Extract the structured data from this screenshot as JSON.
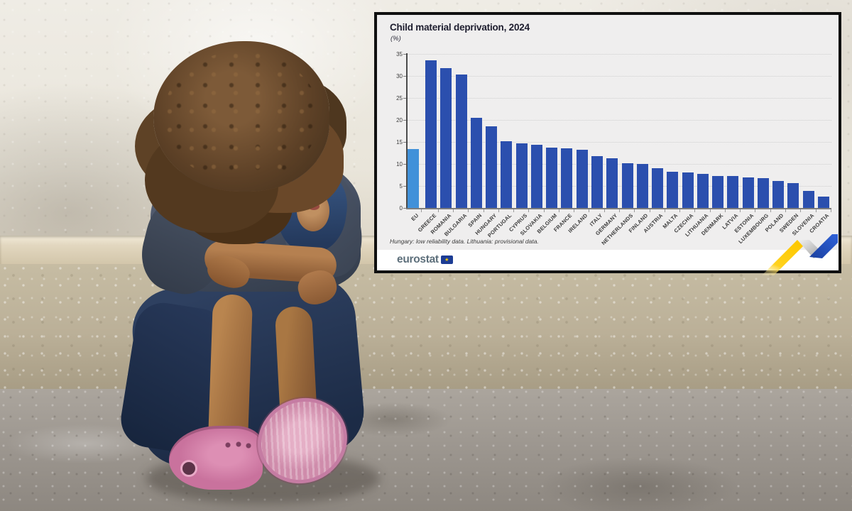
{
  "chart": {
    "title": "Child material deprivation, 2024",
    "unit": "(%)",
    "footnote": "Hungary: low reliability data. Lithuania: provisional data.",
    "brand": "eurostat",
    "flag_star": "★"
  },
  "chart_data": {
    "type": "bar",
    "title": "Child material deprivation, 2024",
    "ylabel": "(%)",
    "ylim": [
      0,
      35
    ],
    "y_ticks": [
      0,
      5,
      10,
      15,
      20,
      25,
      30,
      35
    ],
    "grid": true,
    "legend_position": "none",
    "categories": [
      "EU",
      "GREECE",
      "ROMANIA",
      "BULGARIA",
      "SPAIN",
      "HUNGARY",
      "PORTUGAL",
      "CYPRUS",
      "SLOVAKIA",
      "BELGIUM",
      "FRANCE",
      "IRELAND",
      "ITALY",
      "GERMANY",
      "NETHERLANDS",
      "FINLAND",
      "AUSTRIA",
      "MALTA",
      "CZECHIA",
      "LITHUANIA",
      "DENMARK",
      "LATVIA",
      "ESTONIA",
      "LUXEMBOURG",
      "POLAND",
      "SWEDEN",
      "SLOVENIA",
      "CROATIA"
    ],
    "values": [
      13.4,
      33.5,
      31.8,
      30.3,
      20.5,
      18.6,
      15.1,
      14.7,
      14.4,
      13.7,
      13.5,
      13.3,
      11.7,
      11.3,
      10.2,
      10.0,
      9.1,
      8.3,
      8.0,
      7.7,
      7.3,
      7.3,
      7.0,
      6.8,
      6.1,
      5.6,
      3.8,
      2.6
    ],
    "colors": {
      "eu_bar": "#4191d9",
      "member_bar": "#2b4fae"
    }
  },
  "decoration": {
    "ribbon_colors": {
      "yellow": "#ffd21e",
      "grey": "#b9b9b9",
      "blue": "#2352c4"
    }
  }
}
